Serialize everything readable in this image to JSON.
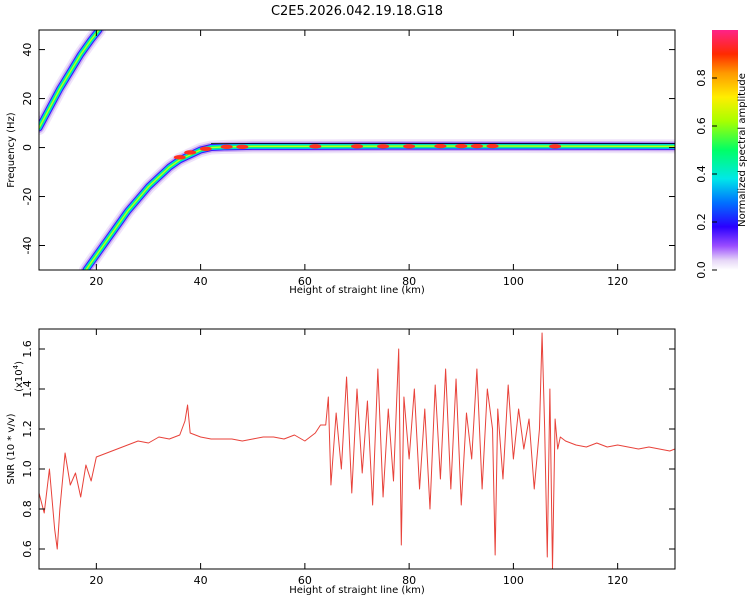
{
  "title": "C2E5.2026.042.19.18.G18",
  "chart_data": [
    {
      "type": "heatmap",
      "xlabel": "Height of straight line (km)",
      "ylabel": "Frequency (Hz)",
      "xlim": [
        9,
        131
      ],
      "ylim": [
        -50,
        48
      ],
      "xticks": [
        20,
        40,
        60,
        80,
        100,
        120
      ],
      "yticks": [
        -40,
        -20,
        0,
        20,
        40
      ],
      "colorbar": {
        "label": "Normalized spectral amplitude",
        "range": [
          0,
          1
        ],
        "ticks": [
          0.0,
          0.2,
          0.4,
          0.6,
          0.8
        ]
      },
      "tracks": [
        {
          "x": [
            9,
            11,
            13,
            15,
            17,
            19,
            20.5
          ],
          "y": [
            8,
            16,
            24,
            31,
            38,
            44,
            48
          ]
        },
        {
          "x": [
            18,
            20,
            22,
            24,
            26,
            28,
            30,
            32,
            34,
            36,
            38,
            40,
            42,
            45,
            50,
            60,
            80,
            100,
            131
          ],
          "y": [
            -50,
            -44,
            -38,
            -32,
            -26,
            -21,
            -16,
            -12,
            -8,
            -5,
            -3,
            -1,
            0,
            0.3,
            0.5,
            0.5,
            0.6,
            0.6,
            0.5
          ]
        }
      ]
    },
    {
      "type": "line",
      "xlabel": "Height of straight line (km)",
      "ylabel": "SNR (10 * v/v)",
      "yscale_note": "(x10",
      "yscale_exp": "4",
      "xlim": [
        9,
        131
      ],
      "ylim": [
        0.5,
        1.7
      ],
      "xticks": [
        20,
        40,
        60,
        80,
        100,
        120
      ],
      "yticks": [
        0.6,
        0.8,
        1.0,
        1.2,
        1.4,
        1.6
      ],
      "series": [
        {
          "color": "#e8423a",
          "x": [
            9,
            10,
            11,
            12,
            12.5,
            13,
            14,
            15,
            16,
            17,
            18,
            19,
            20,
            22,
            24,
            26,
            28,
            30,
            32,
            34,
            36,
            37,
            37.5,
            38,
            40,
            42,
            44,
            46,
            48,
            50,
            52,
            54,
            56,
            58,
            60,
            62,
            63,
            64,
            64.5,
            65,
            66,
            67,
            68,
            69,
            70,
            71,
            72,
            73,
            74,
            75,
            76,
            77,
            78,
            78.5,
            79,
            80,
            81,
            82,
            83,
            84,
            85,
            86,
            87,
            88,
            89,
            90,
            91,
            92,
            93,
            94,
            95,
            96,
            96.5,
            97,
            98,
            99,
            100,
            101,
            102,
            103,
            104,
            105,
            105.5,
            106,
            106.5,
            107,
            107.5,
            108,
            108.5,
            109,
            110,
            112,
            114,
            116,
            118,
            120,
            122,
            124,
            126,
            128,
            130,
            131
          ],
          "y": [
            0.88,
            0.78,
            1.0,
            0.7,
            0.6,
            0.8,
            1.08,
            0.92,
            0.98,
            0.86,
            1.02,
            0.94,
            1.06,
            1.08,
            1.1,
            1.12,
            1.14,
            1.13,
            1.16,
            1.15,
            1.17,
            1.24,
            1.32,
            1.18,
            1.16,
            1.15,
            1.15,
            1.15,
            1.14,
            1.15,
            1.16,
            1.16,
            1.15,
            1.17,
            1.14,
            1.18,
            1.22,
            1.22,
            1.36,
            0.92,
            1.28,
            1.0,
            1.46,
            0.88,
            1.4,
            0.98,
            1.34,
            0.82,
            1.5,
            0.86,
            1.3,
            0.94,
            1.6,
            0.62,
            1.36,
            1.05,
            1.4,
            0.9,
            1.3,
            0.8,
            1.42,
            0.95,
            1.5,
            0.9,
            1.45,
            0.82,
            1.28,
            1.05,
            1.5,
            0.9,
            1.4,
            1.2,
            0.57,
            1.3,
            0.95,
            1.42,
            1.05,
            1.3,
            1.1,
            1.25,
            0.9,
            1.2,
            1.68,
            1.2,
            0.56,
            1.4,
            0.5,
            1.25,
            1.1,
            1.16,
            1.14,
            1.12,
            1.11,
            1.13,
            1.11,
            1.12,
            1.11,
            1.1,
            1.11,
            1.1,
            1.09,
            1.1
          ]
        }
      ]
    }
  ]
}
